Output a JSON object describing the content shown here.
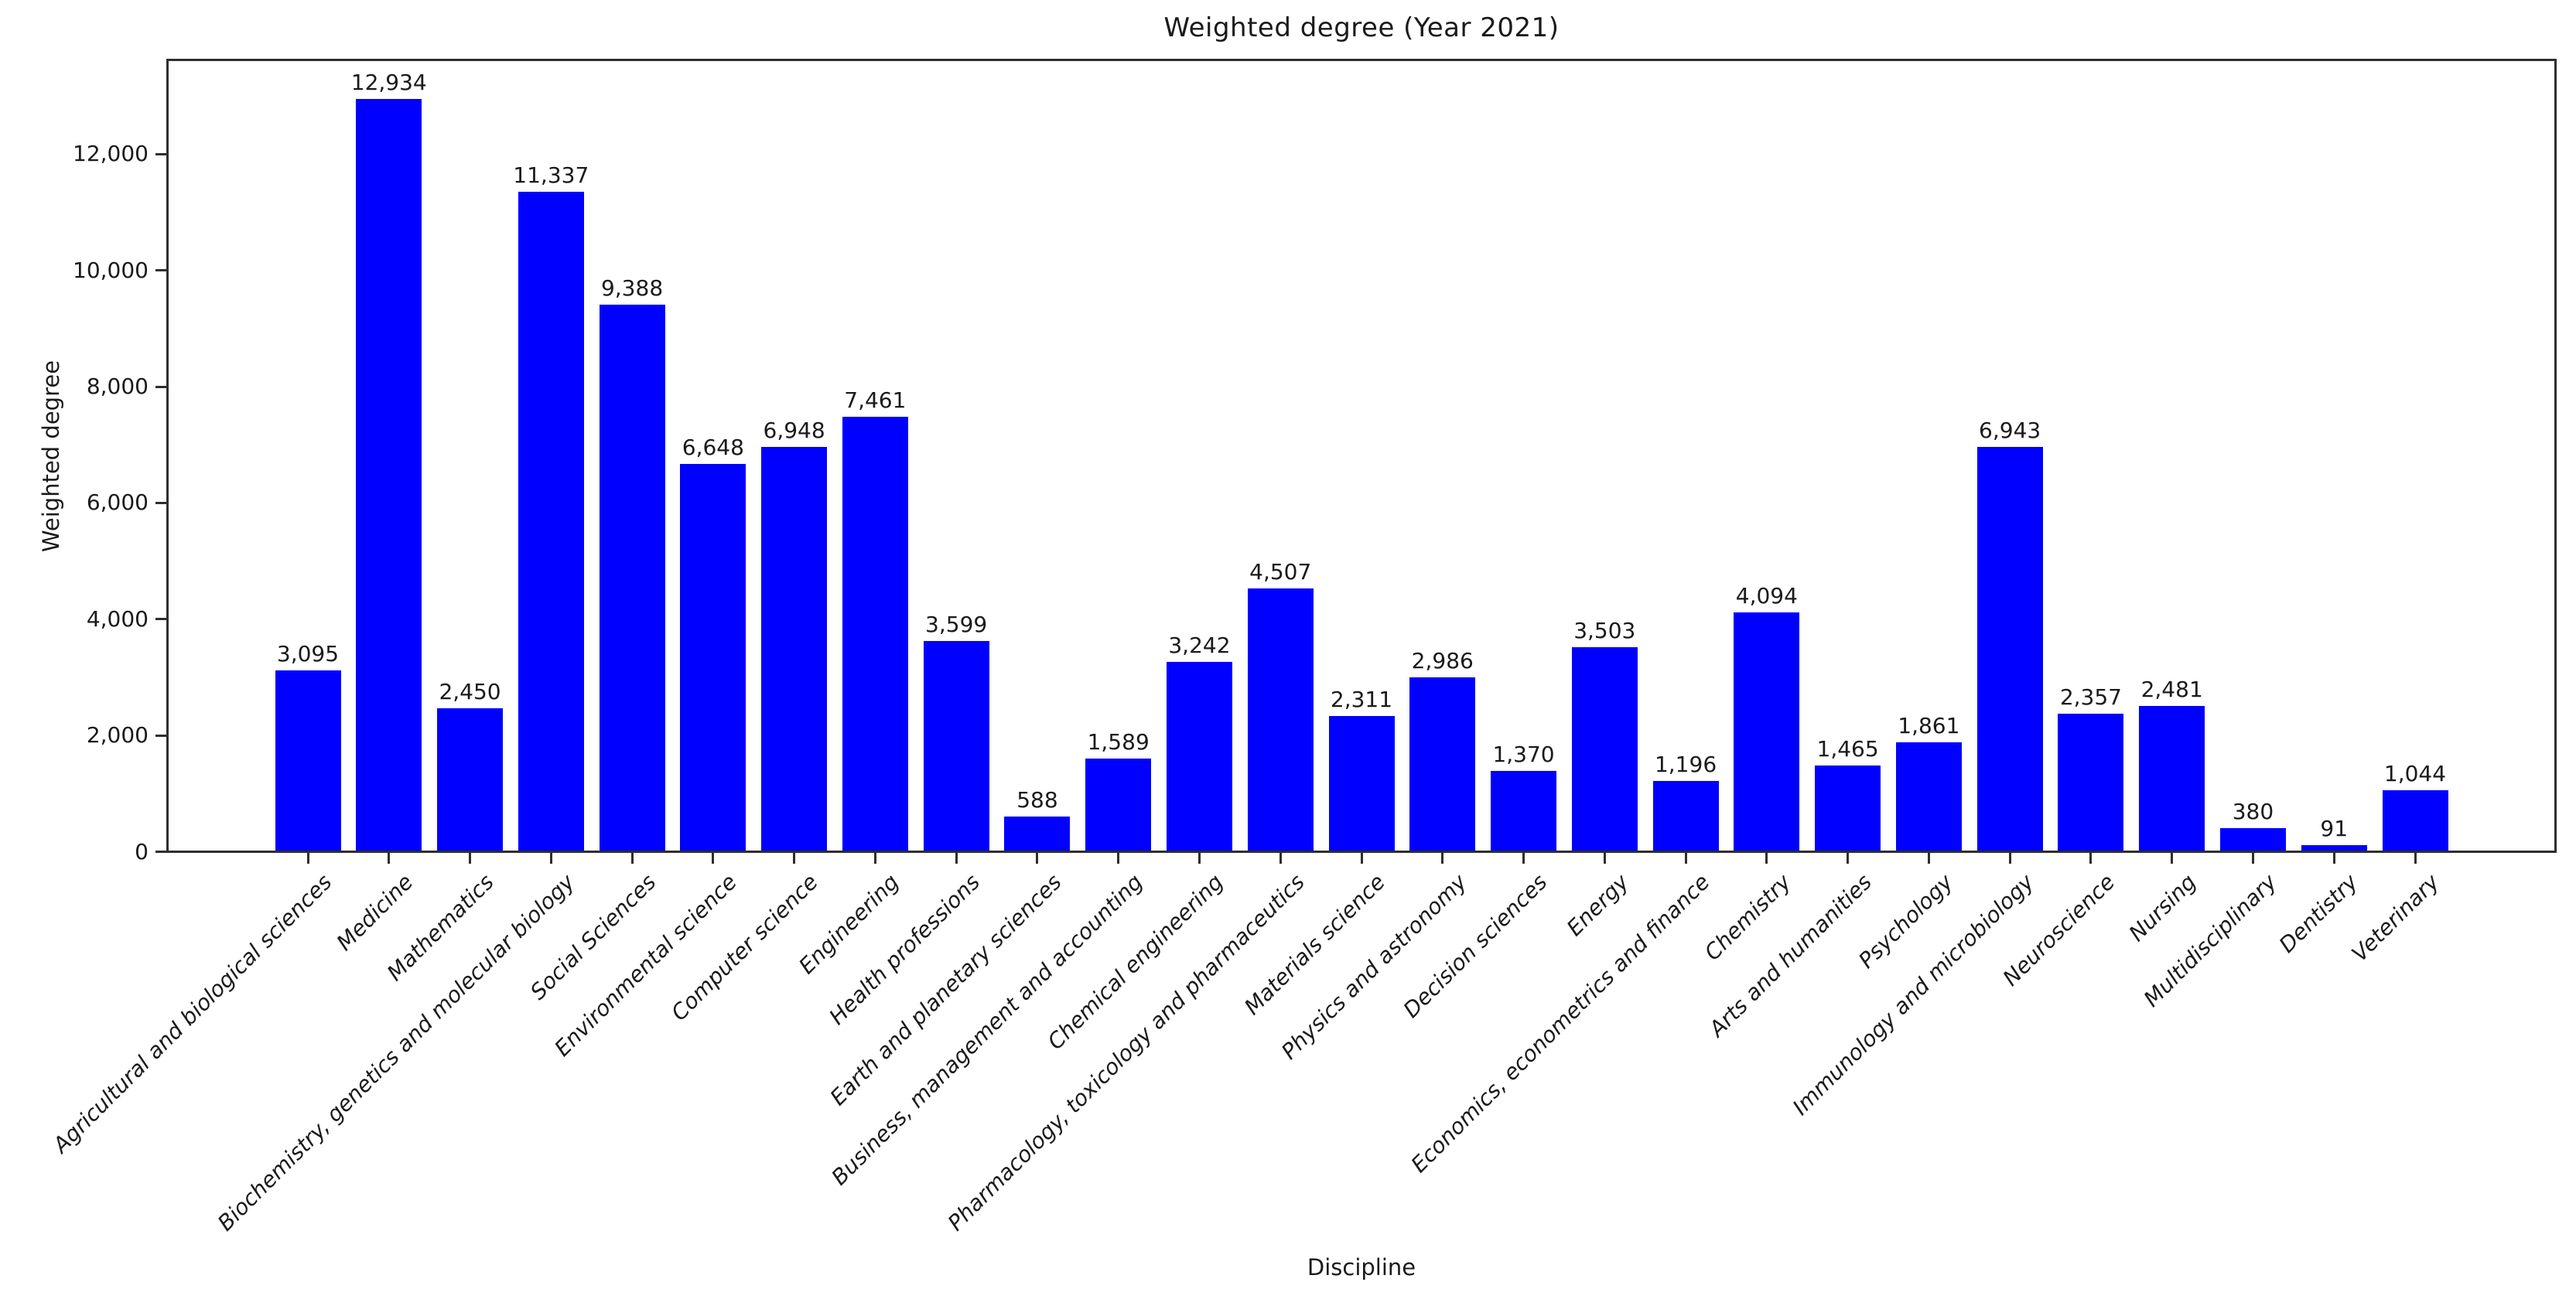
{
  "chart_data": {
    "type": "bar",
    "title": "Weighted degree (Year 2021)",
    "xlabel": "Discipline",
    "ylabel": "Weighted degree",
    "categories": [
      "Agricultural and biological sciences",
      "Medicine",
      "Mathematics",
      "Biochemistry, genetics and molecular biology",
      "Social Sciences",
      "Environmental science",
      "Computer science",
      "Engineering",
      "Health professions",
      "Earth and planetary sciences",
      "Business, management and accounting",
      "Chemical engineering",
      "Pharmacology, toxicology and pharmaceutics",
      "Materials science",
      "Physics and astronomy",
      "Decision sciences",
      "Energy",
      "Economics, econometrics and finance",
      "Chemistry",
      "Arts and humanities",
      "Psychology",
      "Immunology and microbiology",
      "Neuroscience",
      "Nursing",
      "Multidisciplinary",
      "Dentistry",
      "Veterinary"
    ],
    "values": [
      3095,
      12934,
      2450,
      11337,
      9388,
      6648,
      6948,
      7461,
      3599,
      588,
      1589,
      3242,
      4507,
      2311,
      2986,
      1370,
      3503,
      1196,
      4094,
      1465,
      1861,
      6943,
      2357,
      2481,
      380,
      91,
      1044
    ],
    "value_labels": [
      "3,095",
      "12,934",
      "2,450",
      "11,337",
      "9,388",
      "6,648",
      "6,948",
      "7,461",
      "3,599",
      "588",
      "1,589",
      "3,242",
      "4,507",
      "2,311",
      "2,986",
      "1,370",
      "3,503",
      "1,196",
      "4,094",
      "1,465",
      "1,861",
      "6,943",
      "2,357",
      "2,481",
      "380",
      "91",
      "1,044"
    ],
    "ytick_values": [
      0,
      2000,
      4000,
      6000,
      8000,
      10000,
      12000
    ],
    "ytick_labels": [
      "0",
      "2,000",
      "4,000",
      "6,000",
      "8,000",
      "10,000",
      "12,000"
    ],
    "ylim": [
      0,
      13581
    ],
    "bar_color": "#0000ff",
    "axis_color": "#2e2e2e",
    "text_color": "#1a1a1a",
    "grid": false,
    "legend_position": "none"
  }
}
